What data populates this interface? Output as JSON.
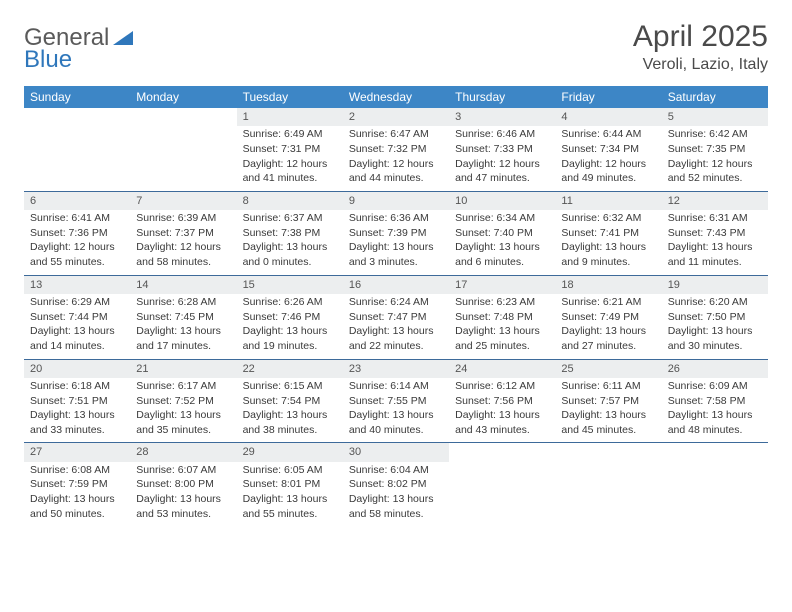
{
  "logo": {
    "text1": "General",
    "text2": "Blue"
  },
  "title": "April 2025",
  "subtitle": "Veroli, Lazio, Italy",
  "colors": {
    "header_bg": "#3d86c6",
    "header_text": "#ffffff",
    "daynum_bg": "#eceeef",
    "border": "#3d6a9a",
    "text": "#3a3a3a",
    "logo_gray": "#5a5a5a",
    "logo_blue": "#2f77bb"
  },
  "daysOfWeek": [
    "Sunday",
    "Monday",
    "Tuesday",
    "Wednesday",
    "Thursday",
    "Friday",
    "Saturday"
  ],
  "weeks": [
    [
      {
        "empty": true
      },
      {
        "empty": true
      },
      {
        "n": "1",
        "sr": "Sunrise: 6:49 AM",
        "ss": "Sunset: 7:31 PM",
        "d1": "Daylight: 12 hours",
        "d2": "and 41 minutes."
      },
      {
        "n": "2",
        "sr": "Sunrise: 6:47 AM",
        "ss": "Sunset: 7:32 PM",
        "d1": "Daylight: 12 hours",
        "d2": "and 44 minutes."
      },
      {
        "n": "3",
        "sr": "Sunrise: 6:46 AM",
        "ss": "Sunset: 7:33 PM",
        "d1": "Daylight: 12 hours",
        "d2": "and 47 minutes."
      },
      {
        "n": "4",
        "sr": "Sunrise: 6:44 AM",
        "ss": "Sunset: 7:34 PM",
        "d1": "Daylight: 12 hours",
        "d2": "and 49 minutes."
      },
      {
        "n": "5",
        "sr": "Sunrise: 6:42 AM",
        "ss": "Sunset: 7:35 PM",
        "d1": "Daylight: 12 hours",
        "d2": "and 52 minutes."
      }
    ],
    [
      {
        "n": "6",
        "sr": "Sunrise: 6:41 AM",
        "ss": "Sunset: 7:36 PM",
        "d1": "Daylight: 12 hours",
        "d2": "and 55 minutes."
      },
      {
        "n": "7",
        "sr": "Sunrise: 6:39 AM",
        "ss": "Sunset: 7:37 PM",
        "d1": "Daylight: 12 hours",
        "d2": "and 58 minutes."
      },
      {
        "n": "8",
        "sr": "Sunrise: 6:37 AM",
        "ss": "Sunset: 7:38 PM",
        "d1": "Daylight: 13 hours",
        "d2": "and 0 minutes."
      },
      {
        "n": "9",
        "sr": "Sunrise: 6:36 AM",
        "ss": "Sunset: 7:39 PM",
        "d1": "Daylight: 13 hours",
        "d2": "and 3 minutes."
      },
      {
        "n": "10",
        "sr": "Sunrise: 6:34 AM",
        "ss": "Sunset: 7:40 PM",
        "d1": "Daylight: 13 hours",
        "d2": "and 6 minutes."
      },
      {
        "n": "11",
        "sr": "Sunrise: 6:32 AM",
        "ss": "Sunset: 7:41 PM",
        "d1": "Daylight: 13 hours",
        "d2": "and 9 minutes."
      },
      {
        "n": "12",
        "sr": "Sunrise: 6:31 AM",
        "ss": "Sunset: 7:43 PM",
        "d1": "Daylight: 13 hours",
        "d2": "and 11 minutes."
      }
    ],
    [
      {
        "n": "13",
        "sr": "Sunrise: 6:29 AM",
        "ss": "Sunset: 7:44 PM",
        "d1": "Daylight: 13 hours",
        "d2": "and 14 minutes."
      },
      {
        "n": "14",
        "sr": "Sunrise: 6:28 AM",
        "ss": "Sunset: 7:45 PM",
        "d1": "Daylight: 13 hours",
        "d2": "and 17 minutes."
      },
      {
        "n": "15",
        "sr": "Sunrise: 6:26 AM",
        "ss": "Sunset: 7:46 PM",
        "d1": "Daylight: 13 hours",
        "d2": "and 19 minutes."
      },
      {
        "n": "16",
        "sr": "Sunrise: 6:24 AM",
        "ss": "Sunset: 7:47 PM",
        "d1": "Daylight: 13 hours",
        "d2": "and 22 minutes."
      },
      {
        "n": "17",
        "sr": "Sunrise: 6:23 AM",
        "ss": "Sunset: 7:48 PM",
        "d1": "Daylight: 13 hours",
        "d2": "and 25 minutes."
      },
      {
        "n": "18",
        "sr": "Sunrise: 6:21 AM",
        "ss": "Sunset: 7:49 PM",
        "d1": "Daylight: 13 hours",
        "d2": "and 27 minutes."
      },
      {
        "n": "19",
        "sr": "Sunrise: 6:20 AM",
        "ss": "Sunset: 7:50 PM",
        "d1": "Daylight: 13 hours",
        "d2": "and 30 minutes."
      }
    ],
    [
      {
        "n": "20",
        "sr": "Sunrise: 6:18 AM",
        "ss": "Sunset: 7:51 PM",
        "d1": "Daylight: 13 hours",
        "d2": "and 33 minutes."
      },
      {
        "n": "21",
        "sr": "Sunrise: 6:17 AM",
        "ss": "Sunset: 7:52 PM",
        "d1": "Daylight: 13 hours",
        "d2": "and 35 minutes."
      },
      {
        "n": "22",
        "sr": "Sunrise: 6:15 AM",
        "ss": "Sunset: 7:54 PM",
        "d1": "Daylight: 13 hours",
        "d2": "and 38 minutes."
      },
      {
        "n": "23",
        "sr": "Sunrise: 6:14 AM",
        "ss": "Sunset: 7:55 PM",
        "d1": "Daylight: 13 hours",
        "d2": "and 40 minutes."
      },
      {
        "n": "24",
        "sr": "Sunrise: 6:12 AM",
        "ss": "Sunset: 7:56 PM",
        "d1": "Daylight: 13 hours",
        "d2": "and 43 minutes."
      },
      {
        "n": "25",
        "sr": "Sunrise: 6:11 AM",
        "ss": "Sunset: 7:57 PM",
        "d1": "Daylight: 13 hours",
        "d2": "and 45 minutes."
      },
      {
        "n": "26",
        "sr": "Sunrise: 6:09 AM",
        "ss": "Sunset: 7:58 PM",
        "d1": "Daylight: 13 hours",
        "d2": "and 48 minutes."
      }
    ],
    [
      {
        "n": "27",
        "sr": "Sunrise: 6:08 AM",
        "ss": "Sunset: 7:59 PM",
        "d1": "Daylight: 13 hours",
        "d2": "and 50 minutes."
      },
      {
        "n": "28",
        "sr": "Sunrise: 6:07 AM",
        "ss": "Sunset: 8:00 PM",
        "d1": "Daylight: 13 hours",
        "d2": "and 53 minutes."
      },
      {
        "n": "29",
        "sr": "Sunrise: 6:05 AM",
        "ss": "Sunset: 8:01 PM",
        "d1": "Daylight: 13 hours",
        "d2": "and 55 minutes."
      },
      {
        "n": "30",
        "sr": "Sunrise: 6:04 AM",
        "ss": "Sunset: 8:02 PM",
        "d1": "Daylight: 13 hours",
        "d2": "and 58 minutes."
      },
      {
        "empty": true
      },
      {
        "empty": true
      },
      {
        "empty": true
      }
    ]
  ]
}
